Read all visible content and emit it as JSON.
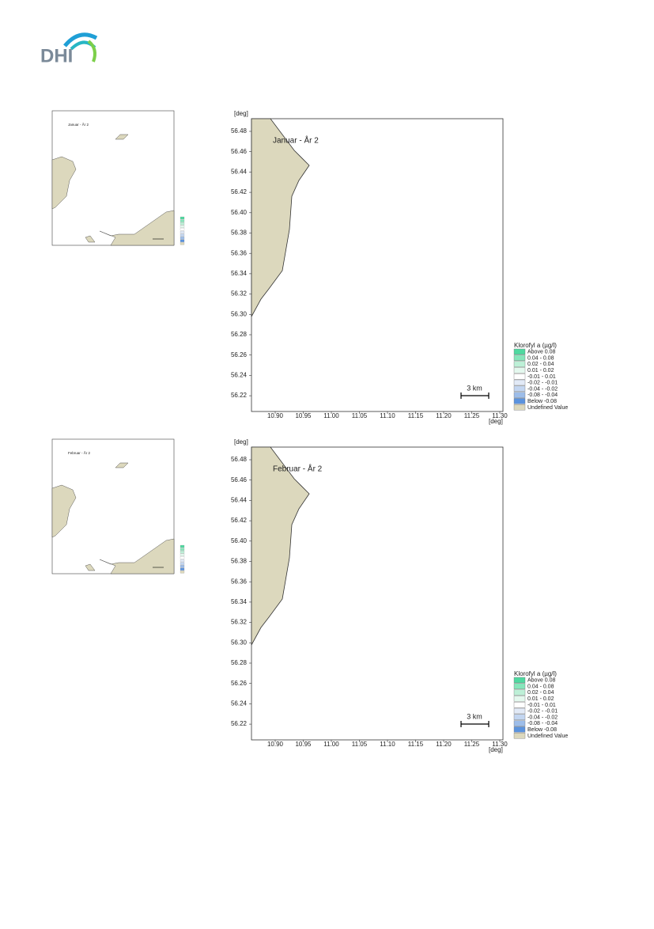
{
  "logo": "DHI",
  "panels": [
    {
      "overview": {
        "title": "Januar - År 2"
      },
      "map": {
        "title": "Januar - År 2",
        "y_unit": "[deg]",
        "x_unit": "[deg]",
        "yticks": [
          "56.48",
          "56.46",
          "56.44",
          "56.42",
          "56.40",
          "56.38",
          "56.36",
          "56.34",
          "56.32",
          "56.30",
          "56.28",
          "56.26",
          "56.24",
          "56.22"
        ],
        "xticks": [
          "10.90",
          "10.95",
          "11.00",
          "11.05",
          "11.10",
          "11.15",
          "11.20",
          "11.25",
          "11.30"
        ],
        "scale_bar": "3 km",
        "legend": {
          "title": "Klorofyl a (µg/l)",
          "items": [
            {
              "label": "Above  0.08",
              "color": "#4fd9a0"
            },
            {
              "label": "0.04 -  0.08",
              "color": "#86e6bb"
            },
            {
              "label": "0.02 -  0.04",
              "color": "#bdf0d7"
            },
            {
              "label": "0.01 -  0.02",
              "color": "#e4f8ee"
            },
            {
              "label": "-0.01 -  0.01",
              "color": "#ffffff"
            },
            {
              "label": "-0.02 - -0.01",
              "color": "#e2eaf7"
            },
            {
              "label": "-0.04 - -0.02",
              "color": "#c3d6f1"
            },
            {
              "label": "-0.08 - -0.04",
              "color": "#9dbde9"
            },
            {
              "label": "Below -0.08",
              "color": "#5b93de"
            },
            {
              "label": "Undefined Value",
              "color": "#dcd8bd"
            }
          ]
        }
      }
    },
    {
      "overview": {
        "title": "Februar - År 2"
      },
      "map": {
        "title": "Februar - År 2",
        "y_unit": "[deg]",
        "x_unit": "[deg]",
        "yticks": [
          "56.48",
          "56.46",
          "56.44",
          "56.42",
          "56.40",
          "56.38",
          "56.36",
          "56.34",
          "56.32",
          "56.30",
          "56.28",
          "56.26",
          "56.24",
          "56.22"
        ],
        "xticks": [
          "10.90",
          "10.95",
          "11.00",
          "11.05",
          "11.10",
          "11.15",
          "11.20",
          "11.25",
          "11.30"
        ],
        "scale_bar": "3 km",
        "legend": {
          "title": "Klorofyl a (µg/l)",
          "items": [
            {
              "label": "Above  0.08",
              "color": "#4fd9a0"
            },
            {
              "label": "0.04 -  0.08",
              "color": "#86e6bb"
            },
            {
              "label": "0.02 -  0.04",
              "color": "#bdf0d7"
            },
            {
              "label": "0.01 -  0.02",
              "color": "#e4f8ee"
            },
            {
              "label": "-0.01 -  0.01",
              "color": "#ffffff"
            },
            {
              "label": "-0.02 - -0.01",
              "color": "#e2eaf7"
            },
            {
              "label": "-0.04 - -0.02",
              "color": "#c3d6f1"
            },
            {
              "label": "-0.08 - -0.04",
              "color": "#9dbde9"
            },
            {
              "label": "Below -0.08",
              "color": "#5b93de"
            },
            {
              "label": "Undefined Value",
              "color": "#dcd8bd"
            }
          ]
        }
      }
    }
  ]
}
